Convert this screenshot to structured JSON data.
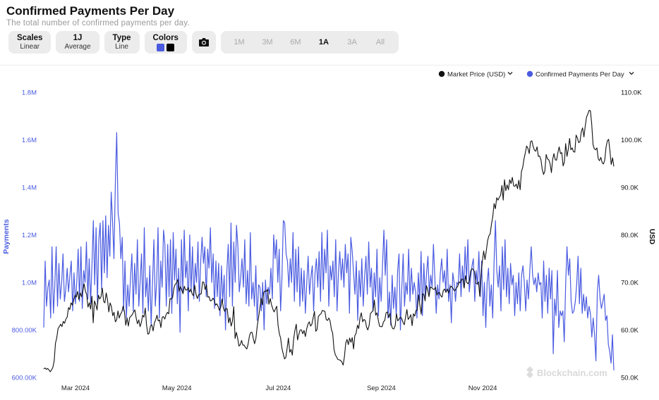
{
  "header": {
    "title": "Confirmed Payments Per Day",
    "subtitle": "The total number of confirmed payments per day."
  },
  "toolbar": {
    "scales": {
      "label": "Scales",
      "value": "Linear"
    },
    "average": {
      "label": "1J",
      "value": "Average"
    },
    "type": {
      "label": "Type",
      "value": "Line"
    },
    "colors": {
      "label": "Colors",
      "swatches": [
        "#4a5be0",
        "#000000"
      ]
    },
    "camera_icon": "camera-icon",
    "ranges": [
      "1M",
      "3M",
      "6M",
      "1A",
      "3A",
      "All"
    ],
    "active_range": "1A"
  },
  "watermark": "Blockchain.com",
  "chart_data": {
    "type": "line",
    "x_ticks": [
      "Mar 2024",
      "May 2024",
      "Jul 2024",
      "Sep 2024",
      "Nov 2024"
    ],
    "x_range": [
      "2024-02-16",
      "2025-01-24"
    ],
    "legend_placement": "top-right",
    "grid": false,
    "y_left": {
      "label": "Payments",
      "color": "#4a5be0",
      "range": [
        600000,
        1800000
      ],
      "ticks": [
        "600.00K",
        "800.00K",
        "1.0M",
        "1.2M",
        "1.4M",
        "1.6M",
        "1.8M"
      ]
    },
    "y_right": {
      "label": "USD",
      "color": "#111111",
      "range": [
        50000,
        110000
      ],
      "ticks": [
        "50.0K",
        "60.0K",
        "70.0K",
        "80.0K",
        "90.0K",
        "100.0K",
        "110.0K"
      ]
    },
    "series": [
      {
        "name": "Confirmed Payments Per Day",
        "axis": "left",
        "color": "#4a5be0",
        "values": [
          810000,
          1090000,
          900000,
          980000,
          1010000,
          850000,
          1150000,
          870000,
          980000,
          1150000,
          900000,
          1080000,
          930000,
          1000000,
          1120000,
          920000,
          970000,
          1060000,
          960000,
          1030000,
          1090000,
          880000,
          1040000,
          910000,
          1000000,
          1140000,
          920000,
          1150000,
          890000,
          1050000,
          1000000,
          1170000,
          930000,
          1100000,
          910000,
          1070000,
          1260000,
          990000,
          1230000,
          910000,
          1180000,
          1250000,
          970000,
          1260000,
          1040000,
          1280000,
          1020000,
          1240000,
          1110000,
          1380000,
          1250000,
          1100000,
          1420000,
          1630000,
          1290000,
          1250000,
          1100000,
          1190000,
          880000,
          1090000,
          850000,
          990000,
          900000,
          1020000,
          1120000,
          880000,
          1080000,
          950000,
          1180000,
          900000,
          1000000,
          1120000,
          870000,
          1230000,
          940000,
          1020000,
          880000,
          1070000,
          820000,
          1000000,
          1180000,
          900000,
          1000000,
          1230000,
          850000,
          1090000,
          980000,
          1220000,
          1160000,
          900000,
          1160000,
          940000,
          1180000,
          870000,
          1210000,
          1010000,
          1140000,
          910000,
          1060000,
          790000,
          1180000,
          960000,
          1220000,
          1020000,
          1090000,
          880000,
          1200000,
          960000,
          1150000,
          930000,
          1080000,
          1000000,
          1170000,
          920000,
          1090000,
          1190000,
          1080000,
          1150000,
          940000,
          1140000,
          1060000,
          1230000,
          1000000,
          1120000,
          890000,
          1090000,
          940000,
          1080000,
          860000,
          1070000,
          920000,
          1030000,
          800000,
          1050000,
          1160000,
          940000,
          1250000,
          900000,
          1170000,
          1000000,
          1240000,
          1150000,
          960000,
          1020000,
          1100000,
          980000,
          1180000,
          910000,
          1050000,
          900000,
          1210000,
          930000,
          1000000,
          900000,
          1070000,
          840000,
          990000,
          980000,
          880000,
          1000000,
          800000,
          1010000,
          910000,
          980000,
          950000,
          1060000,
          930000,
          1200000,
          1100000,
          1180000,
          1000000,
          1140000,
          880000,
          1020000,
          1260000,
          1250000,
          1120000,
          1090000,
          980000,
          1100000,
          1000000,
          1210000,
          920000,
          1140000,
          960000,
          1150000,
          900000,
          1060000,
          920000,
          1050000,
          870000,
          1000000,
          1110000,
          950000,
          1020000,
          1070000,
          880000,
          1040000,
          1100000,
          980000,
          1130000,
          920000,
          1210000,
          970000,
          1140000,
          1040000,
          1220000,
          900000,
          1070000,
          1010000,
          1090000,
          940000,
          1180000,
          880000,
          1040000,
          1130000,
          1010000,
          1100000,
          980000,
          1160000,
          1040000,
          1120000,
          870000,
          1190000,
          1130000,
          1040000,
          950000,
          1090000,
          840000,
          1050000,
          940000,
          1100000,
          900000,
          1020000,
          1110000,
          950000,
          1170000,
          980000,
          1060000,
          880000,
          1040000,
          940000,
          1140000,
          860000,
          1020000,
          920000,
          1070000,
          1220000,
          1030000,
          1180000,
          850000,
          960000,
          820000,
          1030000,
          890000,
          980000,
          860000,
          1050000,
          1120000,
          800000,
          970000,
          1120000,
          900000,
          1000000,
          950000,
          1140000,
          920000,
          1060000,
          950000,
          1000000,
          960000,
          850000,
          1040000,
          920000,
          1130000,
          860000,
          1080000,
          940000,
          1040000,
          1110000,
          950000,
          1030000,
          980000,
          1160000,
          1020000,
          870000,
          990000,
          930000,
          1040000,
          1100000,
          1000000,
          1050000,
          960000,
          1140000,
          920000,
          990000,
          830000,
          1040000,
          1000000,
          920000,
          1000000,
          990000,
          1120000,
          940000,
          1070000,
          980000,
          1150000,
          1010000,
          1180000,
          960000,
          1020000,
          1070000,
          1100000,
          920000,
          1050000,
          990000,
          1130000,
          940000,
          1090000,
          860000,
          1000000,
          810000,
          1000000,
          1060000,
          900000,
          990000,
          850000,
          1080000,
          1260000,
          1050000,
          980000,
          1070000,
          880000,
          1150000,
          970000,
          1180000,
          940000,
          1060000,
          910000,
          1080000,
          990000,
          1030000,
          860000,
          1000000,
          910000,
          1040000,
          880000,
          1030000,
          1070000,
          1000000,
          880000,
          1010000,
          930000,
          1050000,
          1150000,
          1030000,
          990000,
          1020000,
          960000,
          1040000,
          990000,
          1000000,
          850000,
          1090000,
          920000,
          1030000,
          870000,
          1060000,
          930000,
          1050000,
          700000,
          930000,
          860000,
          1050000,
          810000,
          880000,
          860000,
          880000,
          750000,
          990000,
          1150000,
          1030000,
          1100000,
          920000,
          870000,
          880000,
          920000,
          990000,
          1110000,
          910000,
          1060000,
          870000,
          950000,
          880000,
          940000,
          850000,
          900000,
          870000,
          770000,
          850000,
          780000,
          670000,
          960000,
          1030000,
          930000,
          890000,
          920000,
          950000,
          840000,
          860000,
          740000,
          710000,
          660000,
          780000,
          630000
        ]
      },
      {
        "name": "Market Price (USD)",
        "axis": "right",
        "color": "#111111",
        "values": [
          51800,
          52000,
          51700,
          51900,
          51600,
          51200,
          51600,
          52100,
          53500,
          57200,
          58300,
          60300,
          60700,
          61200,
          60700,
          61800,
          61400,
          62300,
          62700,
          64700,
          64300,
          65700,
          65200,
          66200,
          67300,
          66900,
          68100,
          66400,
          67800,
          67000,
          68200,
          69700,
          68200,
          67400,
          64800,
          65700,
          64400,
          67100,
          61500,
          66100,
          65300,
          64200,
          67300,
          66500,
          67000,
          68800,
          66000,
          65700,
          67800,
          66300,
          63800,
          65700,
          64900,
          63000,
          63700,
          61700,
          62100,
          64000,
          62500,
          63300,
          63800,
          65000,
          63800,
          61000,
          62500,
          60800,
          62600,
          62900,
          63200,
          63800,
          64200,
          62500,
          61300,
          62100,
          60700,
          61600,
          63100,
          62700,
          64600,
          61000,
          59100,
          59300,
          60800,
          61100,
          59800,
          61500,
          62100,
          63100,
          61900,
          62100,
          60500,
          62700,
          62800,
          62300,
          63200,
          63700,
          63400,
          66600,
          66500,
          66800,
          68800,
          69600,
          69900,
          70600,
          68100,
          69100,
          68500,
          67600,
          69200,
          68400,
          68400,
          68900,
          68000,
          68600,
          67600,
          67200,
          69400,
          67500,
          66600,
          67400,
          67500,
          67600,
          70100,
          70000,
          68500,
          69500,
          66900,
          67000,
          66100,
          66200,
          66700,
          66200,
          65200,
          65500,
          64900,
          64100,
          64800,
          66500,
          64600,
          63900,
          64500,
          64400,
          61500,
          62600,
          60800,
          61900,
          64900,
          58200,
          59500,
          58200,
          56600,
          56900,
          57800,
          56800,
          56800,
          56300,
          56000,
          57000,
          58700,
          59500,
          59500,
          58200,
          57100,
          58200,
          60700,
          62600,
          64400,
          66600,
          65300,
          67900,
          68200,
          68100,
          68500,
          65400,
          66600,
          65300,
          64400,
          63800,
          64400,
          65000,
          61000,
          59200,
          58300,
          56100,
          55000,
          53900,
          54200,
          56200,
          58300,
          55300,
          55900,
          54700,
          58100,
          59900,
          61200,
          57900,
          59100,
          60000,
          60000,
          59200,
          59900,
          58600,
          60200,
          61200,
          61700,
          60800,
          61200,
          62600,
          63900,
          59700,
          60100,
          62800,
          63200,
          63400,
          64100,
          64000,
          63900,
          62200,
          62000,
          62500,
          61900,
          60100,
          59300,
          55900,
          54800,
          54300,
          53800,
          53700,
          53600,
          53300,
          52600,
          54300,
          57200,
          58000,
          56900,
          58300,
          57400,
          58400,
          56000,
          58800,
          59300,
          61000,
          60300,
          62600,
          63600,
          61700,
          62200,
          62000,
          60600,
          60000,
          61000,
          63400,
          63800,
          64000,
          66300,
          63100,
          63600,
          62100,
          60800,
          60700,
          60700,
          61700,
          62000,
          63600,
          63800,
          62600,
          63500,
          61100,
          60300,
          60200,
          60900,
          63400,
          61900,
          62300,
          62700,
          62400,
          61600,
          61100,
          62700,
          64300,
          62200,
          62600,
          63200,
          60900,
          63400,
          62900,
          64100,
          64200,
          67400,
          65200,
          63300,
          67600,
          67500,
          66100,
          69300,
          68400,
          67000,
          69000,
          68900,
          68600,
          68500,
          69000,
          67300,
          67800,
          67900,
          67200,
          66900,
          68300,
          68600,
          67900,
          68600,
          67800,
          68800,
          69200,
          68900,
          68400,
          68200,
          68900,
          69100,
          70100,
          69900,
          70700,
          70700,
          68800,
          71400,
          70000,
          69700,
          70300,
          72400,
          72900,
          72700,
          72200,
          69800,
          69700,
          70100,
          67100,
          71600,
          74500,
          76600,
          74800,
          76600,
          78800,
          79800,
          80200,
          82300,
          83800,
          86600,
          85500,
          87800,
          87300,
          87900,
          88300,
          90400,
          87300,
          91600,
          89300,
          90500,
          89500,
          91600,
          90800,
          92100,
          90300,
          90200,
          90700,
          89700,
          91500,
          89500,
          93300,
          94200,
          96000,
          97300,
          98700,
          98200,
          97100,
          99600,
          99800,
          98600,
          97800,
          97600,
          98500,
          96500,
          96600,
          95800,
          93800,
          92700,
          93400,
          96900,
          96000,
          95800,
          95000,
          93100,
          95900,
          97100,
          95800,
          95700,
          97300,
          98500,
          97100,
          97300,
          94500,
          95300,
          99200,
          96500,
          98000,
          100300,
          97900,
          98300,
          97500,
          97400,
          101000,
          100400,
          99400,
          99600,
          101700,
          102500,
          100600,
          102800,
          104800,
          105400,
          106200,
          106100,
          103400,
          99000,
          98100,
          97900,
          98300,
          96000,
          95600,
          96300,
          95200,
          94900,
          95700,
          98400,
          99800,
          100100,
          97600,
          94800,
          96200,
          94400
        ]
      }
    ]
  }
}
